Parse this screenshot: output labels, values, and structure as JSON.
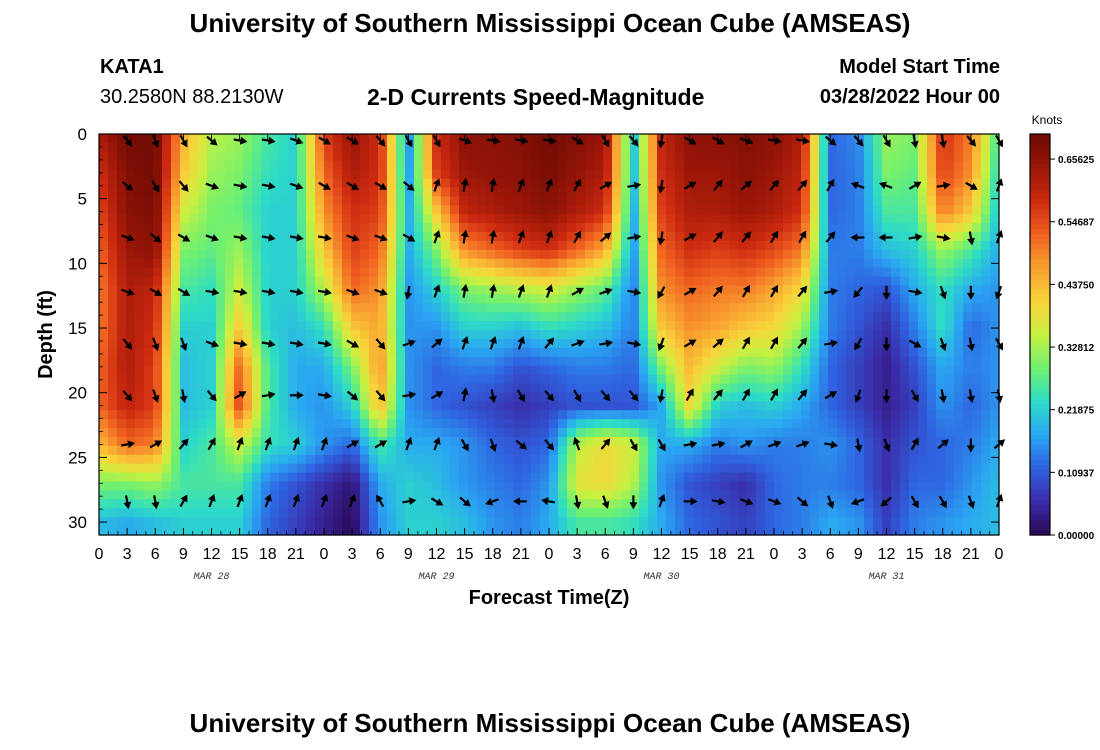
{
  "header": {
    "title": "University of Southern Mississippi Ocean Cube (AMSEAS)",
    "station_id": "KATA1",
    "coordinates": "30.2580N  88.2130W",
    "subtitle": "2-D Currents Speed-Magnitude",
    "model_start_label": "Model Start Time",
    "model_start_value": "03/28/2022 Hour 00"
  },
  "footer": {
    "title": "University of Southern Mississippi Ocean Cube (AMSEAS)"
  },
  "chart_data": {
    "type": "heatmap",
    "title": "2-D Currents Speed-Magnitude",
    "xlabel": "Forecast Time(Z)",
    "ylabel": "Depth (ft)",
    "xlim": [
      0,
      96
    ],
    "ylim": [
      0,
      31
    ],
    "x_ticks": [
      0,
      3,
      6,
      9,
      12,
      15,
      18,
      21,
      24,
      27,
      30,
      33,
      36,
      39,
      42,
      45,
      48,
      51,
      54,
      57,
      60,
      63,
      66,
      69,
      72,
      75,
      78,
      81,
      84,
      87,
      90,
      93,
      96
    ],
    "x_tick_labels": [
      "0",
      "3",
      "6",
      "9",
      "12",
      "15",
      "18",
      "21",
      "0",
      "3",
      "6",
      "9",
      "12",
      "15",
      "18",
      "21",
      "0",
      "3",
      "6",
      "9",
      "12",
      "15",
      "18",
      "21",
      "0",
      "3",
      "6",
      "9",
      "12",
      "15",
      "18",
      "21",
      "0"
    ],
    "date_labels": [
      {
        "x": 12,
        "text": "MAR 28"
      },
      {
        "x": 36,
        "text": "MAR 29"
      },
      {
        "x": 60,
        "text": "MAR 30"
      },
      {
        "x": 84,
        "text": "MAR 31"
      }
    ],
    "y_ticks": [
      0,
      5,
      10,
      15,
      20,
      25,
      30
    ],
    "y_tick_labels": [
      "0",
      "5",
      "10",
      "15",
      "20",
      "25",
      "30"
    ],
    "colorbar": {
      "title": "Knots",
      "range": [
        0,
        0.7
      ],
      "ticks": [
        0.0,
        0.109375,
        0.21875,
        0.328125,
        0.4375,
        0.546875,
        0.65625
      ],
      "tick_labels": [
        "0.00000",
        "0.10937",
        "0.21875",
        "0.32812",
        "0.43750",
        "0.54687",
        "0.65625"
      ],
      "colors": [
        "#2a0a5a",
        "#3a2ca8",
        "#2f62e0",
        "#2aa6f2",
        "#2ddcc6",
        "#70f070",
        "#c8f040",
        "#f8d33a",
        "#f8a030",
        "#f06020",
        "#cc2a10",
        "#9a1608",
        "#6a0a04"
      ]
    },
    "arrow_times": [
      3,
      6,
      9,
      12,
      15,
      18,
      21,
      24,
      27,
      30,
      33,
      36,
      39,
      42,
      45,
      48,
      51,
      54,
      57,
      60,
      63,
      66,
      69,
      72,
      75,
      78,
      81,
      84,
      87,
      90,
      93,
      96
    ],
    "arrow_depths": [
      0.5,
      4,
      8,
      12.2,
      16.2,
      20.2,
      24,
      28.4
    ],
    "speed_field_knots": {
      "times": [
        0,
        3,
        6,
        9,
        12,
        15,
        18,
        21,
        24,
        27,
        30,
        33,
        36,
        39,
        42,
        45,
        48,
        51,
        54,
        57,
        60,
        63,
        66,
        69,
        72,
        75,
        78,
        81,
        84,
        87,
        90,
        93,
        96
      ],
      "depths": [
        0,
        3,
        6,
        9,
        12,
        15,
        18,
        21,
        24,
        27,
        30
      ],
      "values": [
        [
          0.62,
          0.69,
          0.69,
          0.45,
          0.34,
          0.32,
          0.26,
          0.22,
          0.56,
          0.65,
          0.58,
          0.15,
          0.58,
          0.66,
          0.66,
          0.67,
          0.69,
          0.67,
          0.64,
          0.2,
          0.6,
          0.66,
          0.66,
          0.67,
          0.66,
          0.62,
          0.12,
          0.15,
          0.32,
          0.3,
          0.58,
          0.5,
          0.25
        ],
        [
          0.58,
          0.67,
          0.69,
          0.42,
          0.32,
          0.3,
          0.24,
          0.22,
          0.52,
          0.62,
          0.58,
          0.16,
          0.56,
          0.64,
          0.65,
          0.66,
          0.68,
          0.65,
          0.62,
          0.2,
          0.58,
          0.64,
          0.64,
          0.66,
          0.64,
          0.6,
          0.12,
          0.14,
          0.3,
          0.28,
          0.56,
          0.48,
          0.22
        ],
        [
          0.55,
          0.66,
          0.68,
          0.36,
          0.3,
          0.28,
          0.22,
          0.22,
          0.48,
          0.58,
          0.56,
          0.18,
          0.42,
          0.6,
          0.62,
          0.64,
          0.66,
          0.62,
          0.58,
          0.18,
          0.56,
          0.62,
          0.62,
          0.64,
          0.62,
          0.58,
          0.12,
          0.14,
          0.26,
          0.26,
          0.5,
          0.42,
          0.2
        ],
        [
          0.52,
          0.64,
          0.66,
          0.3,
          0.28,
          0.32,
          0.22,
          0.22,
          0.42,
          0.56,
          0.52,
          0.18,
          0.3,
          0.48,
          0.52,
          0.56,
          0.58,
          0.52,
          0.45,
          0.16,
          0.52,
          0.58,
          0.56,
          0.58,
          0.55,
          0.5,
          0.14,
          0.14,
          0.2,
          0.22,
          0.32,
          0.26,
          0.18
        ],
        [
          0.5,
          0.62,
          0.6,
          0.26,
          0.24,
          0.36,
          0.22,
          0.22,
          0.34,
          0.52,
          0.48,
          0.16,
          0.22,
          0.3,
          0.32,
          0.34,
          0.36,
          0.32,
          0.28,
          0.14,
          0.48,
          0.52,
          0.5,
          0.5,
          0.46,
          0.4,
          0.14,
          0.12,
          0.1,
          0.18,
          0.24,
          0.18,
          0.16
        ],
        [
          0.5,
          0.62,
          0.58,
          0.22,
          0.22,
          0.42,
          0.22,
          0.2,
          0.24,
          0.42,
          0.46,
          0.16,
          0.16,
          0.22,
          0.22,
          0.2,
          0.24,
          0.22,
          0.2,
          0.14,
          0.42,
          0.48,
          0.46,
          0.42,
          0.4,
          0.32,
          0.14,
          0.1,
          0.06,
          0.14,
          0.24,
          0.12,
          0.16
        ],
        [
          0.52,
          0.62,
          0.56,
          0.2,
          0.22,
          0.52,
          0.26,
          0.18,
          0.18,
          0.3,
          0.48,
          0.16,
          0.12,
          0.14,
          0.14,
          0.1,
          0.12,
          0.14,
          0.14,
          0.12,
          0.3,
          0.44,
          0.36,
          0.3,
          0.32,
          0.24,
          0.12,
          0.08,
          0.04,
          0.1,
          0.18,
          0.14,
          0.16
        ],
        [
          0.52,
          0.6,
          0.56,
          0.2,
          0.22,
          0.55,
          0.26,
          0.18,
          0.16,
          0.22,
          0.44,
          0.16,
          0.12,
          0.1,
          0.08,
          0.06,
          0.08,
          0.1,
          0.1,
          0.1,
          0.18,
          0.4,
          0.22,
          0.2,
          0.22,
          0.18,
          0.12,
          0.08,
          0.04,
          0.08,
          0.16,
          0.12,
          0.16
        ],
        [
          0.44,
          0.52,
          0.5,
          0.22,
          0.26,
          0.36,
          0.24,
          0.22,
          0.16,
          0.12,
          0.26,
          0.18,
          0.18,
          0.16,
          0.12,
          0.1,
          0.12,
          0.34,
          0.4,
          0.36,
          0.18,
          0.18,
          0.14,
          0.16,
          0.14,
          0.14,
          0.16,
          0.12,
          0.06,
          0.1,
          0.12,
          0.14,
          0.18
        ],
        [
          0.3,
          0.3,
          0.32,
          0.26,
          0.26,
          0.26,
          0.14,
          0.1,
          0.06,
          0.02,
          0.18,
          0.22,
          0.2,
          0.16,
          0.14,
          0.12,
          0.16,
          0.38,
          0.4,
          0.34,
          0.16,
          0.1,
          0.08,
          0.06,
          0.12,
          0.14,
          0.14,
          0.12,
          0.06,
          0.12,
          0.12,
          0.16,
          0.2
        ],
        [
          0.2,
          0.18,
          0.2,
          0.22,
          0.22,
          0.22,
          0.12,
          0.08,
          0.04,
          0.0,
          0.16,
          0.22,
          0.22,
          0.2,
          0.16,
          0.14,
          0.18,
          0.26,
          0.26,
          0.24,
          0.18,
          0.12,
          0.1,
          0.08,
          0.12,
          0.14,
          0.18,
          0.16,
          0.08,
          0.14,
          0.16,
          0.18,
          0.2
        ]
      ]
    },
    "arrow_directions_deg": [
      [
        140,
        160,
        150,
        130,
        100,
        100,
        110,
        120,
        120,
        140,
        150,
        150,
        110,
        100,
        100,
        100,
        120,
        150,
        140,
        190,
        120,
        120,
        110,
        100,
        100,
        130,
        140,
        150,
        170,
        170,
        140,
        150
      ],
      [
        130,
        150,
        140,
        110,
        100,
        100,
        110,
        120,
        120,
        120,
        130,
        20,
        10,
        10,
        20,
        20,
        30,
        60,
        80,
        190,
        60,
        40,
        50,
        40,
        40,
        30,
        290,
        290,
        60,
        80,
        120,
        20
      ],
      [
        110,
        130,
        120,
        110,
        100,
        100,
        100,
        100,
        110,
        110,
        120,
        20,
        10,
        10,
        20,
        20,
        30,
        50,
        80,
        190,
        60,
        40,
        40,
        30,
        30,
        40,
        270,
        270,
        80,
        100,
        170,
        20
      ],
      [
        110,
        120,
        120,
        100,
        100,
        100,
        100,
        100,
        110,
        110,
        190,
        20,
        10,
        10,
        20,
        20,
        60,
        70,
        100,
        210,
        60,
        40,
        30,
        30,
        40,
        80,
        220,
        180,
        100,
        160,
        180,
        200
      ],
      [
        140,
        160,
        160,
        110,
        100,
        100,
        100,
        100,
        120,
        140,
        70,
        50,
        20,
        20,
        20,
        40,
        70,
        80,
        100,
        200,
        60,
        50,
        30,
        30,
        40,
        80,
        210,
        180,
        120,
        160,
        170,
        150
      ],
      [
        140,
        160,
        170,
        140,
        60,
        80,
        90,
        100,
        130,
        140,
        80,
        60,
        10,
        170,
        150,
        140,
        150,
        140,
        140,
        190,
        30,
        40,
        30,
        30,
        40,
        60,
        200,
        180,
        150,
        170,
        170,
        170
      ],
      [
        80,
        60,
        40,
        30,
        20,
        20,
        20,
        20,
        60,
        60,
        20,
        20,
        150,
        160,
        130,
        140,
        340,
        40,
        150,
        150,
        80,
        80,
        60,
        70,
        70,
        100,
        170,
        160,
        30,
        50,
        180,
        50
      ],
      [
        170,
        170,
        30,
        20,
        20,
        20,
        20,
        20,
        20,
        330,
        80,
        120,
        130,
        250,
        270,
        280,
        170,
        160,
        180,
        20,
        90,
        100,
        110,
        110,
        130,
        160,
        250,
        230,
        150,
        150,
        160,
        20
      ]
    ]
  }
}
